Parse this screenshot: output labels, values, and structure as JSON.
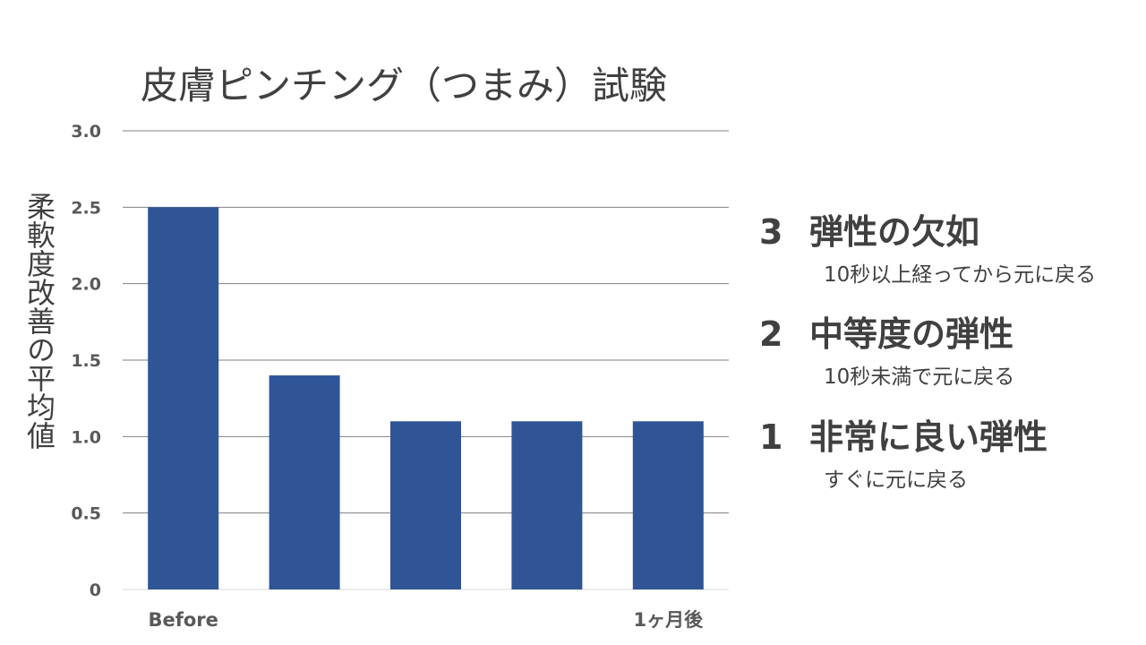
{
  "chart_data": {
    "type": "bar",
    "title": "皮膚ピンチング（つまみ）試験",
    "ylabel": "柔軟度改善の平均値",
    "ylim": [
      0,
      3.0
    ],
    "yticks": [
      "0",
      "0.5",
      "1.0",
      "1.5",
      "2.0",
      "2.5",
      "3.0"
    ],
    "categories": [
      "Before",
      "",
      "",
      "",
      "1ヶ月後"
    ],
    "values": [
      2.5,
      1.4,
      1.1,
      1.1,
      1.1
    ],
    "bar_color": "#2F5597",
    "grid": true
  },
  "legend": [
    {
      "num": "3",
      "label": "弾性の欠如",
      "desc": "10秒以上経ってから元に戻る"
    },
    {
      "num": "2",
      "label": "中等度の弾性",
      "desc": "10秒未満で元に戻る"
    },
    {
      "num": "1",
      "label": "非常に良い弾性",
      "desc": "すぐに元に戻る"
    }
  ]
}
